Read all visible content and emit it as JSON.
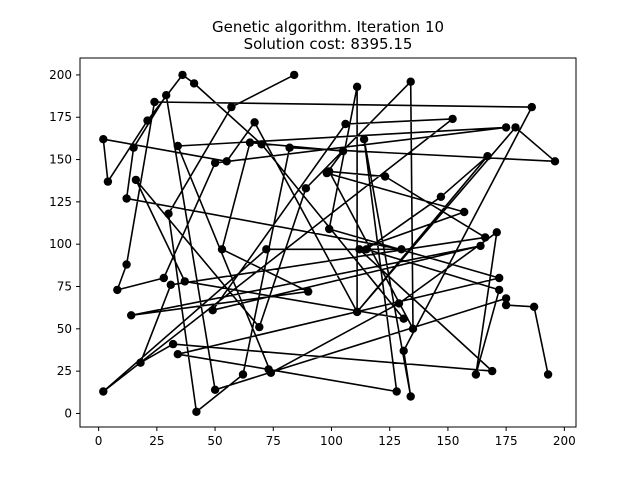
{
  "chart_data": {
    "type": "line",
    "title": "Genetic algorithm. Iteration 10",
    "subtitle": "Solution cost: 8395.15",
    "xlabel": "",
    "ylabel": "",
    "xlim": [
      -8,
      205
    ],
    "ylim": [
      -8,
      210
    ],
    "x_ticks": [
      0,
      25,
      50,
      75,
      100,
      125,
      150,
      175,
      200
    ],
    "y_ticks": [
      0,
      25,
      50,
      75,
      100,
      125,
      150,
      175,
      200
    ],
    "x_tick_labels": [
      "0",
      "25",
      "50",
      "75",
      "100",
      "125",
      "150",
      "175",
      "200"
    ],
    "y_tick_labels": [
      "0",
      "25",
      "50",
      "75",
      "100",
      "125",
      "150",
      "175",
      "200"
    ],
    "grid": false,
    "legend": "none",
    "series": [
      {
        "color": "#000000",
        "marker": "circle",
        "points": [
          [
            84,
            200
          ],
          [
            57,
            181
          ],
          [
            30,
            118
          ],
          [
            42,
            1
          ],
          [
            62,
            23
          ],
          [
            82,
            157
          ],
          [
            196,
            149
          ],
          [
            179,
            169
          ],
          [
            111,
            60
          ],
          [
            167,
            152
          ],
          [
            147,
            128
          ],
          [
            115,
            97
          ],
          [
            172,
            73
          ],
          [
            162,
            23
          ],
          [
            171,
            107
          ],
          [
            129,
            65
          ],
          [
            74,
            24
          ],
          [
            34,
            158
          ],
          [
            175,
            169
          ],
          [
            50,
            148
          ],
          [
            28,
            80
          ],
          [
            8,
            73
          ],
          [
            12,
            88
          ],
          [
            24,
            184
          ],
          [
            186,
            181
          ],
          [
            131,
            37
          ],
          [
            134,
            10
          ],
          [
            114,
            162
          ],
          [
            128,
            13
          ],
          [
            73,
            26
          ],
          [
            34,
            35
          ],
          [
            172,
            80
          ],
          [
            99,
            109
          ],
          [
            111,
            193
          ],
          [
            111,
            60
          ],
          [
            67,
            172
          ],
          [
            55,
            149
          ],
          [
            2,
            162
          ],
          [
            4,
            137
          ],
          [
            21,
            173
          ],
          [
            36,
            200
          ],
          [
            41,
            195
          ],
          [
            70,
            159
          ],
          [
            131,
            56
          ],
          [
            37,
            78
          ],
          [
            16,
            138
          ],
          [
            69,
            51
          ],
          [
            89,
            133
          ],
          [
            134,
            196
          ],
          [
            135,
            50
          ],
          [
            99,
            143
          ],
          [
            123,
            140
          ],
          [
            166,
            104
          ],
          [
            31,
            76
          ],
          [
            18,
            30
          ],
          [
            32,
            41
          ],
          [
            169,
            25
          ],
          [
            112,
            97
          ],
          [
            157,
            119
          ],
          [
            98,
            142
          ],
          [
            105,
            155
          ],
          [
            65,
            160
          ],
          [
            53,
            97
          ],
          [
            90,
            72
          ],
          [
            14,
            58
          ],
          [
            164,
            99
          ],
          [
            49,
            61
          ],
          [
            106,
            171
          ],
          [
            152,
            174
          ],
          [
            2,
            13
          ],
          [
            72,
            97
          ],
          [
            130,
            97
          ],
          [
            12,
            127
          ],
          [
            15,
            157
          ],
          [
            29,
            188
          ],
          [
            50,
            14
          ],
          [
            175,
            68
          ],
          [
            175,
            64
          ],
          [
            187,
            63
          ],
          [
            193,
            23
          ]
        ]
      }
    ]
  }
}
